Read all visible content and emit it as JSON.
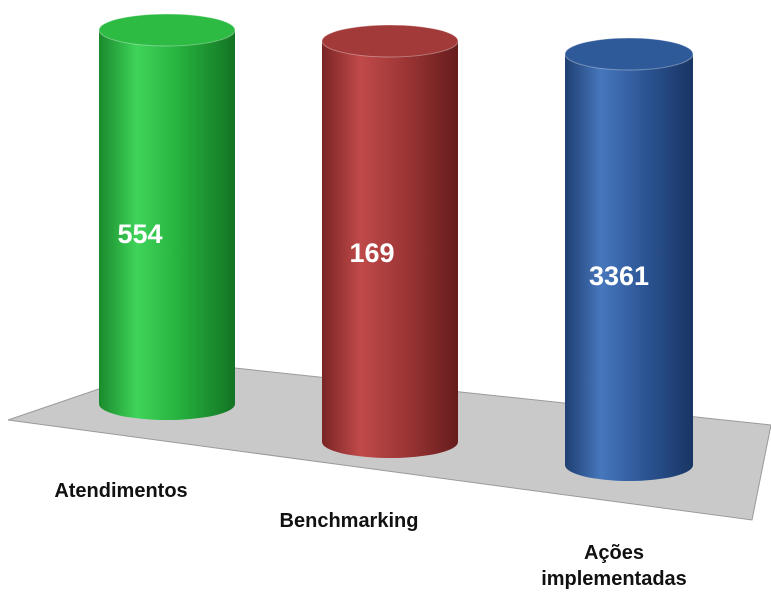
{
  "chart_data": {
    "type": "bar",
    "style": "3d-cylinder",
    "categories": [
      "Atendimentos",
      "Benchmarking",
      "Ações implementadas"
    ],
    "category_label_lines": [
      [
        "Atendimentos"
      ],
      [
        "Benchmarking"
      ],
      [
        "Ações",
        "implementadas"
      ]
    ],
    "values": [
      554,
      169,
      3361
    ],
    "value_labels": [
      "554",
      "169",
      "3361"
    ],
    "colors": [
      "#2dbb44",
      "#a33a3a",
      "#2f5a9a"
    ],
    "floor_color": "#c9c9c9",
    "grid": false,
    "legend": "none"
  }
}
